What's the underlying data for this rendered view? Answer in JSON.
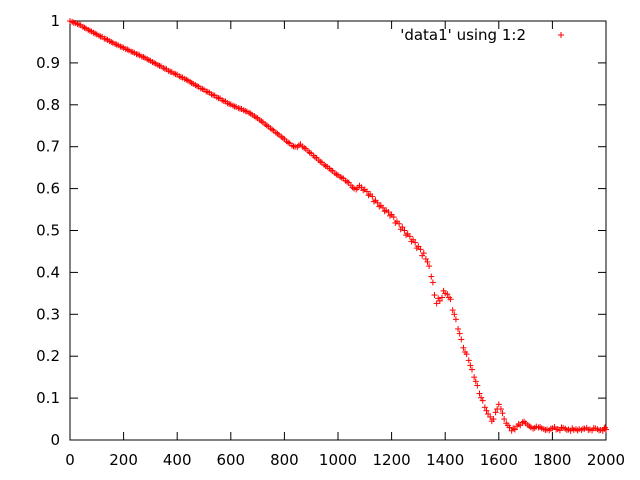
{
  "chart_data": {
    "type": "scatter",
    "title": "",
    "xlabel": "",
    "ylabel": "",
    "xlim": [
      0,
      2000
    ],
    "ylim": [
      0,
      1
    ],
    "x_ticks": [
      0,
      200,
      400,
      600,
      800,
      1000,
      1200,
      1400,
      1600,
      1800,
      2000
    ],
    "y_ticks": [
      0,
      0.1,
      0.2,
      0.3,
      0.4,
      0.5,
      0.6,
      0.7,
      0.8,
      0.9,
      1
    ],
    "x_tick_labels": [
      "0",
      "200",
      "400",
      "600",
      "800",
      "1000",
      "1200",
      "1400",
      "1600",
      "1800",
      "2000"
    ],
    "y_tick_labels": [
      "0",
      "0.1",
      "0.2",
      "0.3",
      "0.4",
      "0.5",
      "0.6",
      "0.7",
      "0.8",
      "0.9",
      "1"
    ],
    "grid": false,
    "legend_position": "top-right",
    "marker": "plus",
    "series_color": "#ff0000",
    "series": [
      {
        "name": "'data1' using 1:2",
        "points": [
          [
            0,
            1.0
          ],
          [
            20,
            0.995
          ],
          [
            40,
            0.99
          ],
          [
            60,
            0.982
          ],
          [
            80,
            0.975
          ],
          [
            100,
            0.968
          ],
          [
            120,
            0.962
          ],
          [
            140,
            0.955
          ],
          [
            160,
            0.948
          ],
          [
            180,
            0.942
          ],
          [
            200,
            0.936
          ],
          [
            220,
            0.93
          ],
          [
            240,
            0.924
          ],
          [
            260,
            0.918
          ],
          [
            280,
            0.912
          ],
          [
            300,
            0.905
          ],
          [
            320,
            0.898
          ],
          [
            340,
            0.892
          ],
          [
            360,
            0.885
          ],
          [
            380,
            0.878
          ],
          [
            400,
            0.872
          ],
          [
            420,
            0.865
          ],
          [
            440,
            0.858
          ],
          [
            460,
            0.85
          ],
          [
            480,
            0.843
          ],
          [
            500,
            0.836
          ],
          [
            520,
            0.829
          ],
          [
            540,
            0.822
          ],
          [
            560,
            0.815
          ],
          [
            580,
            0.808
          ],
          [
            600,
            0.801
          ],
          [
            620,
            0.795
          ],
          [
            640,
            0.79
          ],
          [
            660,
            0.784
          ],
          [
            680,
            0.776
          ],
          [
            700,
            0.768
          ],
          [
            720,
            0.758
          ],
          [
            740,
            0.748
          ],
          [
            760,
            0.738
          ],
          [
            780,
            0.728
          ],
          [
            800,
            0.718
          ],
          [
            820,
            0.708
          ],
          [
            840,
            0.7
          ],
          [
            860,
            0.706
          ],
          [
            880,
            0.695
          ],
          [
            900,
            0.684
          ],
          [
            920,
            0.673
          ],
          [
            940,
            0.662
          ],
          [
            960,
            0.652
          ],
          [
            980,
            0.642
          ],
          [
            1000,
            0.632
          ],
          [
            1020,
            0.624
          ],
          [
            1040,
            0.614
          ],
          [
            1060,
            0.6
          ],
          [
            1080,
            0.607
          ],
          [
            1100,
            0.598
          ],
          [
            1120,
            0.587
          ],
          [
            1140,
            0.572
          ],
          [
            1160,
            0.56
          ],
          [
            1180,
            0.548
          ],
          [
            1200,
            0.538
          ],
          [
            1220,
            0.522
          ],
          [
            1240,
            0.508
          ],
          [
            1260,
            0.492
          ],
          [
            1280,
            0.478
          ],
          [
            1300,
            0.462
          ],
          [
            1320,
            0.446
          ],
          [
            1340,
            0.415
          ],
          [
            1360,
            0.346
          ],
          [
            1380,
            0.332
          ],
          [
            1400,
            0.35
          ],
          [
            1420,
            0.336
          ],
          [
            1440,
            0.288
          ],
          [
            1460,
            0.24
          ],
          [
            1480,
            0.205
          ],
          [
            1500,
            0.168
          ],
          [
            1520,
            0.13
          ],
          [
            1540,
            0.094
          ],
          [
            1560,
            0.062
          ],
          [
            1580,
            0.05
          ],
          [
            1600,
            0.085
          ],
          [
            1620,
            0.05
          ],
          [
            1640,
            0.03
          ],
          [
            1660,
            0.025
          ],
          [
            1680,
            0.035
          ],
          [
            1700,
            0.04
          ],
          [
            1720,
            0.03
          ],
          [
            1740,
            0.032
          ],
          [
            1760,
            0.028
          ],
          [
            1780,
            0.025
          ],
          [
            1800,
            0.028
          ],
          [
            1820,
            0.026
          ],
          [
            1840,
            0.029
          ],
          [
            1860,
            0.025
          ],
          [
            1880,
            0.024
          ],
          [
            1900,
            0.026
          ],
          [
            1920,
            0.027
          ],
          [
            1940,
            0.025
          ],
          [
            1960,
            0.028
          ],
          [
            1980,
            0.024
          ],
          [
            2000,
            0.025
          ],
          [
            8,
            0.998
          ],
          [
            28,
            0.993
          ],
          [
            48,
            0.986
          ],
          [
            68,
            0.979
          ],
          [
            88,
            0.972
          ],
          [
            108,
            0.965
          ],
          [
            128,
            0.958
          ],
          [
            148,
            0.952
          ],
          [
            168,
            0.945
          ],
          [
            188,
            0.939
          ],
          [
            208,
            0.933
          ],
          [
            228,
            0.927
          ],
          [
            248,
            0.921
          ],
          [
            268,
            0.915
          ],
          [
            288,
            0.909
          ],
          [
            308,
            0.902
          ],
          [
            328,
            0.895
          ],
          [
            348,
            0.888
          ],
          [
            368,
            0.881
          ],
          [
            388,
            0.875
          ],
          [
            408,
            0.868
          ],
          [
            428,
            0.862
          ],
          [
            448,
            0.855
          ],
          [
            468,
            0.847
          ],
          [
            488,
            0.839
          ],
          [
            508,
            0.832
          ],
          [
            528,
            0.825
          ],
          [
            548,
            0.818
          ],
          [
            568,
            0.811
          ],
          [
            588,
            0.804
          ],
          [
            608,
            0.798
          ],
          [
            628,
            0.792
          ],
          [
            648,
            0.787
          ],
          [
            668,
            0.781
          ],
          [
            688,
            0.773
          ],
          [
            708,
            0.764
          ],
          [
            728,
            0.754
          ],
          [
            748,
            0.744
          ],
          [
            768,
            0.734
          ],
          [
            788,
            0.724
          ],
          [
            808,
            0.713
          ],
          [
            828,
            0.703
          ],
          [
            848,
            0.699
          ],
          [
            868,
            0.7
          ],
          [
            888,
            0.69
          ],
          [
            908,
            0.679
          ],
          [
            928,
            0.668
          ],
          [
            948,
            0.657
          ],
          [
            968,
            0.648
          ],
          [
            988,
            0.637
          ],
          [
            1008,
            0.628
          ],
          [
            1028,
            0.619
          ],
          [
            1048,
            0.608
          ],
          [
            1068,
            0.598
          ],
          [
            1088,
            0.603
          ],
          [
            1108,
            0.593
          ],
          [
            1128,
            0.581
          ],
          [
            1148,
            0.566
          ],
          [
            1168,
            0.554
          ],
          [
            1188,
            0.544
          ],
          [
            1208,
            0.532
          ],
          [
            1228,
            0.516
          ],
          [
            1248,
            0.5
          ],
          [
            1268,
            0.486
          ],
          [
            1288,
            0.471
          ],
          [
            1308,
            0.455
          ],
          [
            1328,
            0.432
          ],
          [
            1348,
            0.39
          ],
          [
            1368,
            0.326
          ],
          [
            1388,
            0.34
          ],
          [
            1408,
            0.348
          ],
          [
            1428,
            0.31
          ],
          [
            1448,
            0.265
          ],
          [
            1468,
            0.22
          ],
          [
            1488,
            0.19
          ],
          [
            1508,
            0.15
          ],
          [
            1528,
            0.111
          ],
          [
            1548,
            0.078
          ],
          [
            1568,
            0.055
          ],
          [
            1588,
            0.066
          ],
          [
            1608,
            0.074
          ],
          [
            1628,
            0.04
          ],
          [
            1648,
            0.022
          ],
          [
            1668,
            0.033
          ],
          [
            1688,
            0.042
          ],
          [
            1708,
            0.036
          ],
          [
            1728,
            0.027
          ],
          [
            1748,
            0.03
          ],
          [
            1768,
            0.026
          ],
          [
            1788,
            0.023
          ],
          [
            1808,
            0.031
          ],
          [
            1828,
            0.023
          ],
          [
            1848,
            0.027
          ],
          [
            1868,
            0.022
          ],
          [
            1888,
            0.026
          ],
          [
            1908,
            0.024
          ],
          [
            1928,
            0.029
          ],
          [
            1948,
            0.023
          ],
          [
            1968,
            0.026
          ],
          [
            1988,
            0.022
          ],
          [
            1996,
            0.03
          ],
          [
            14,
            0.996
          ],
          [
            34,
            0.991
          ],
          [
            54,
            0.984
          ],
          [
            74,
            0.977
          ],
          [
            94,
            0.97
          ],
          [
            114,
            0.963
          ],
          [
            134,
            0.957
          ],
          [
            154,
            0.95
          ],
          [
            174,
            0.944
          ],
          [
            194,
            0.938
          ],
          [
            214,
            0.932
          ],
          [
            234,
            0.926
          ],
          [
            254,
            0.92
          ],
          [
            274,
            0.914
          ],
          [
            294,
            0.907
          ],
          [
            314,
            0.9
          ],
          [
            334,
            0.893
          ],
          [
            354,
            0.886
          ],
          [
            374,
            0.879
          ],
          [
            394,
            0.873
          ],
          [
            414,
            0.866
          ],
          [
            434,
            0.86
          ],
          [
            454,
            0.852
          ],
          [
            474,
            0.845
          ],
          [
            494,
            0.838
          ],
          [
            514,
            0.831
          ],
          [
            534,
            0.823
          ],
          [
            554,
            0.816
          ],
          [
            574,
            0.809
          ],
          [
            594,
            0.802
          ],
          [
            614,
            0.796
          ],
          [
            634,
            0.791
          ],
          [
            654,
            0.785
          ],
          [
            674,
            0.779
          ],
          [
            694,
            0.77
          ],
          [
            714,
            0.761
          ],
          [
            734,
            0.751
          ],
          [
            754,
            0.741
          ],
          [
            774,
            0.731
          ],
          [
            794,
            0.721
          ],
          [
            814,
            0.71
          ],
          [
            834,
            0.701
          ],
          [
            854,
            0.703
          ],
          [
            874,
            0.697
          ],
          [
            894,
            0.686
          ],
          [
            914,
            0.675
          ],
          [
            934,
            0.664
          ],
          [
            954,
            0.654
          ],
          [
            974,
            0.644
          ],
          [
            994,
            0.634
          ],
          [
            1014,
            0.626
          ],
          [
            1034,
            0.616
          ],
          [
            1054,
            0.603
          ],
          [
            1074,
            0.602
          ],
          [
            1094,
            0.596
          ],
          [
            1114,
            0.584
          ],
          [
            1134,
            0.569
          ],
          [
            1154,
            0.557
          ],
          [
            1174,
            0.546
          ],
          [
            1194,
            0.535
          ],
          [
            1214,
            0.518
          ],
          [
            1234,
            0.503
          ],
          [
            1254,
            0.489
          ],
          [
            1274,
            0.474
          ],
          [
            1294,
            0.458
          ],
          [
            1314,
            0.44
          ],
          [
            1334,
            0.425
          ],
          [
            1354,
            0.376
          ],
          [
            1374,
            0.338
          ],
          [
            1394,
            0.356
          ],
          [
            1414,
            0.34
          ],
          [
            1434,
            0.3
          ],
          [
            1454,
            0.254
          ],
          [
            1474,
            0.21
          ],
          [
            1494,
            0.178
          ],
          [
            1514,
            0.14
          ],
          [
            1534,
            0.101
          ],
          [
            1554,
            0.07
          ],
          [
            1574,
            0.045
          ],
          [
            1594,
            0.074
          ],
          [
            1614,
            0.064
          ],
          [
            1634,
            0.035
          ],
          [
            1654,
            0.028
          ],
          [
            1674,
            0.038
          ],
          [
            1694,
            0.044
          ],
          [
            1714,
            0.033
          ],
          [
            1734,
            0.029
          ],
          [
            1754,
            0.031
          ],
          [
            1774,
            0.024
          ],
          [
            1794,
            0.027
          ],
          [
            1814,
            0.025
          ],
          [
            1834,
            0.03
          ],
          [
            1854,
            0.024
          ],
          [
            1874,
            0.028
          ],
          [
            1894,
            0.023
          ],
          [
            1914,
            0.027
          ],
          [
            1934,
            0.024
          ],
          [
            1954,
            0.028
          ],
          [
            1974,
            0.023
          ],
          [
            1994,
            0.027
          ]
        ]
      }
    ]
  }
}
